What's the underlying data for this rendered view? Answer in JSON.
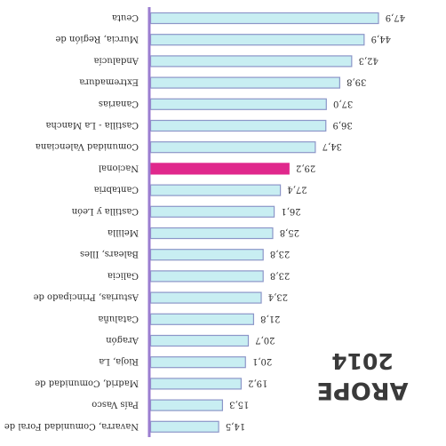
{
  "title": {
    "line1": "2014",
    "line2": "AROPE"
  },
  "chart_data": {
    "type": "bar",
    "orientation": "horizontal",
    "title": "AROPE 2014",
    "categories": [
      "Ceuta",
      "Murcia, Región de",
      "Andalucía",
      "Extremadura",
      "Canarias",
      "Castilla - La Mancha",
      "Comunidad Valenciana",
      "Nacional",
      "Cantabria",
      "Castilla y León",
      "Melilla",
      "Balears, Illes",
      "Galicia",
      "Asturias, Principado de",
      "Cataluña",
      "Aragón",
      "Rioja, La",
      "Madrid, Comunidad de",
      "País Vasco",
      "Navarra, Comunidad Foral de"
    ],
    "values": [
      47.9,
      44.9,
      42.3,
      39.8,
      37.0,
      36.9,
      34.7,
      29.2,
      27.4,
      26.1,
      25.8,
      23.8,
      23.8,
      23.4,
      21.8,
      20.7,
      20.1,
      19.2,
      15.3,
      14.5
    ],
    "value_labels": [
      "47,9",
      "44,9",
      "42,3",
      "39,8",
      "37,0",
      "36,9",
      "34,7",
      "29,2",
      "27,4",
      "26,1",
      "25,8",
      "23,8",
      "23,8",
      "23,4",
      "21,8",
      "20,7",
      "20,1",
      "19,2",
      "15,3",
      "14,5"
    ],
    "highlight_category": "Nacional",
    "xlim": [
      0,
      47.9
    ],
    "grid": false,
    "legend": "none",
    "colors": {
      "bar_fill": "#c8eef2",
      "bar_stroke": "#8c96c8",
      "highlight": "#e0288c",
      "axis": "#9b7dd0",
      "text": "#2a2a2a"
    }
  }
}
